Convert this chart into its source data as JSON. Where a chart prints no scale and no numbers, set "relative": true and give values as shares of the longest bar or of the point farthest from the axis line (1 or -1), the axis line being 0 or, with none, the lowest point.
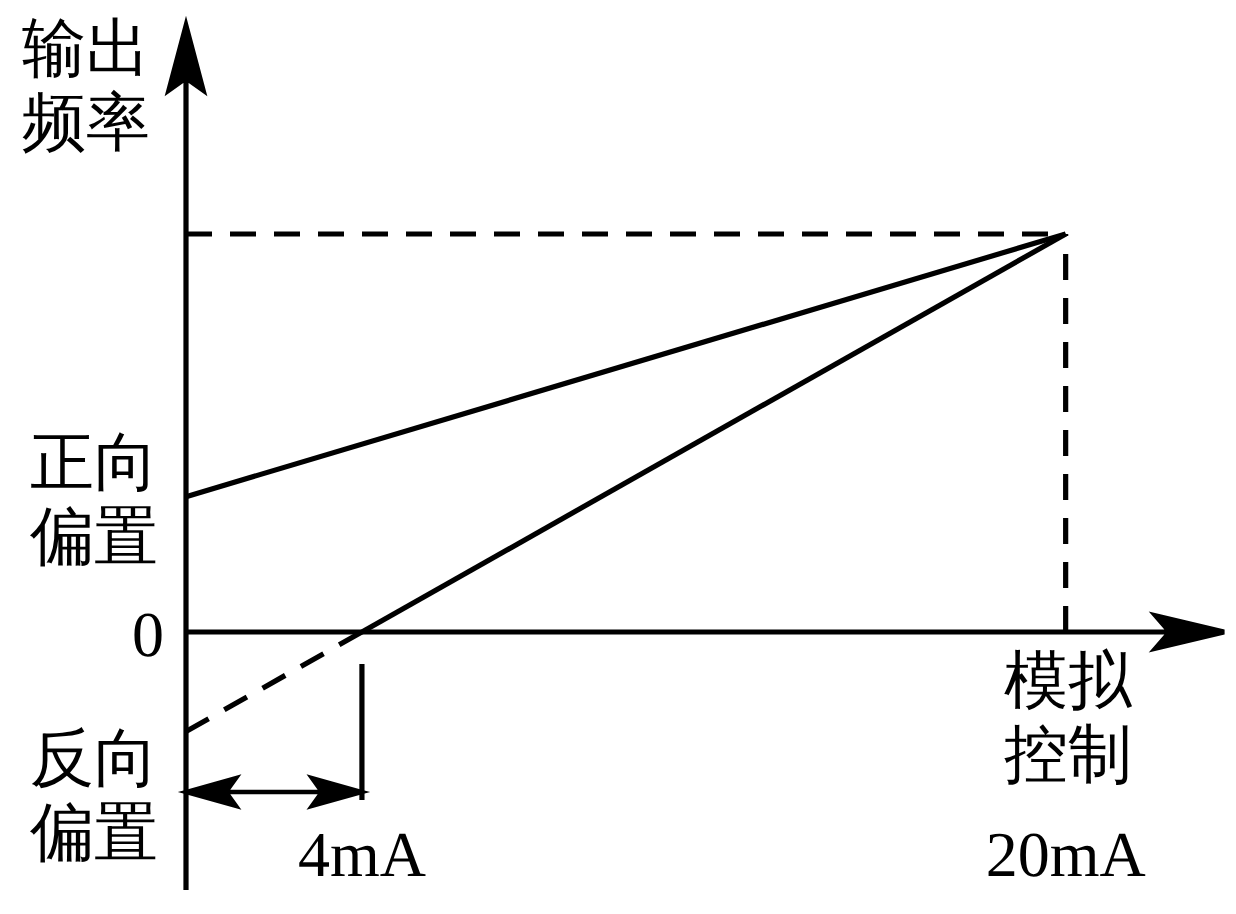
{
  "chart_data": {
    "type": "line",
    "relative": true,
    "xlabel": "模拟控制",
    "ylabel": "输出频率",
    "xlim": [
      0,
      23.6
    ],
    "xticks": [
      {
        "value": 4,
        "label": "4mA"
      },
      {
        "value": 20,
        "label": "20mA"
      }
    ],
    "tick_labels": "x",
    "series": [
      {
        "x": [
          0,
          20
        ],
        "values": [
          0.34,
          1
        ],
        "color": "#000000",
        "line_style": "solid"
      },
      {
        "x": [
          0,
          4
        ],
        "values": [
          -0.25,
          0
        ],
        "color": "#000000",
        "line_style": "dashed"
      },
      {
        "x": [
          4,
          20
        ],
        "values": [
          0,
          1
        ],
        "color": "#000000",
        "line_style": "solid"
      },
      {
        "x": [
          0,
          20
        ],
        "values": [
          1,
          1
        ],
        "color": "#000000",
        "line_style": "dashed"
      }
    ],
    "ref_lines": [
      {
        "axis": "x",
        "value": 20,
        "line_style": "dashed",
        "color": "#000000"
      },
      {
        "axis": "x",
        "value": 4,
        "line_style": "solid",
        "color": "#000000"
      }
    ],
    "annotations": [
      "0",
      {
        "text": "正向偏置",
        "x": 0,
        "y": 0.34
      },
      {
        "text": "反向偏置",
        "x": 0,
        "y": -0.25
      }
    ]
  }
}
